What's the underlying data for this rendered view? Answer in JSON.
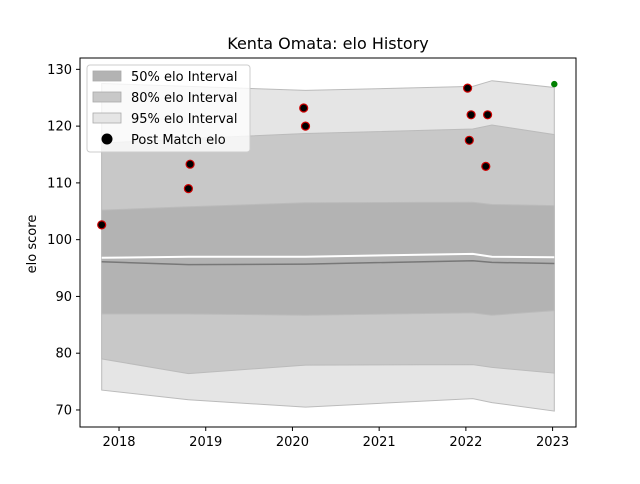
{
  "chart_data": {
    "type": "line",
    "title": "Kenta Omata: elo History",
    "xlabel": "",
    "ylabel": "elo score",
    "xlim": [
      2017.55,
      2023.27
    ],
    "ylim": [
      67,
      132
    ],
    "x_ticks": [
      2018,
      2019,
      2020,
      2021,
      2022,
      2023
    ],
    "y_ticks": [
      70,
      80,
      90,
      100,
      110,
      120,
      130
    ],
    "grid": false,
    "legend_position": "top-left",
    "legend": [
      {
        "label": "50% elo Interval",
        "kind": "band",
        "color": "#b3b3b3"
      },
      {
        "label": "80% elo Interval",
        "kind": "band",
        "color": "#c8c8c8"
      },
      {
        "label": "95% elo Interval",
        "kind": "band",
        "color": "#e5e5e5"
      },
      {
        "label": "Post Match elo",
        "kind": "dot",
        "color": "#000000"
      }
    ],
    "series": [
      {
        "name": "95% elo Interval",
        "x": [
          2017.8,
          2018.8,
          2020.15,
          2022.08,
          2022.3,
          2023.02
        ],
        "upper": [
          127.5,
          127.0,
          126.3,
          127.0,
          128.0,
          126.8
        ],
        "lower": [
          73.5,
          71.8,
          70.5,
          72.0,
          71.3,
          69.8
        ]
      },
      {
        "name": "80% elo Interval",
        "x": [
          2017.8,
          2018.8,
          2020.15,
          2022.08,
          2022.3,
          2023.02
        ],
        "upper": [
          117.0,
          117.8,
          118.7,
          119.5,
          120.2,
          118.5
        ],
        "lower": [
          79.0,
          76.4,
          77.9,
          78.0,
          77.5,
          76.5
        ]
      },
      {
        "name": "50% elo Interval",
        "x": [
          2017.8,
          2018.8,
          2020.15,
          2022.08,
          2022.3,
          2023.02
        ],
        "upper": [
          105.2,
          105.8,
          106.5,
          106.6,
          106.2,
          106.0
        ],
        "lower": [
          86.9,
          86.9,
          86.7,
          87.1,
          86.7,
          87.5
        ]
      },
      {
        "name": "Mean elo",
        "x": [
          2017.8,
          2018.8,
          2020.15,
          2022.08,
          2022.3,
          2023.02
        ],
        "values": [
          96.1,
          95.6,
          95.7,
          96.3,
          96.0,
          95.8
        ]
      },
      {
        "name": "Median elo",
        "x": [
          2017.8,
          2018.8,
          2020.15,
          2022.08,
          2022.3,
          2023.02
        ],
        "values": [
          96.8,
          97.0,
          97.0,
          97.5,
          97.0,
          96.9
        ]
      },
      {
        "name": "Post Match elo",
        "x": [
          2017.8,
          2018.8,
          2018.82,
          2020.15,
          2020.13,
          2022.02,
          2022.04,
          2022.06,
          2022.23,
          2022.25
        ],
        "values": [
          102.6,
          109.0,
          113.3,
          120.0,
          123.2,
          126.7,
          117.5,
          122.0,
          112.9,
          122.0
        ]
      },
      {
        "name": "Current elo",
        "x": [
          2023.02
        ],
        "values": [
          127.4
        ]
      }
    ]
  }
}
